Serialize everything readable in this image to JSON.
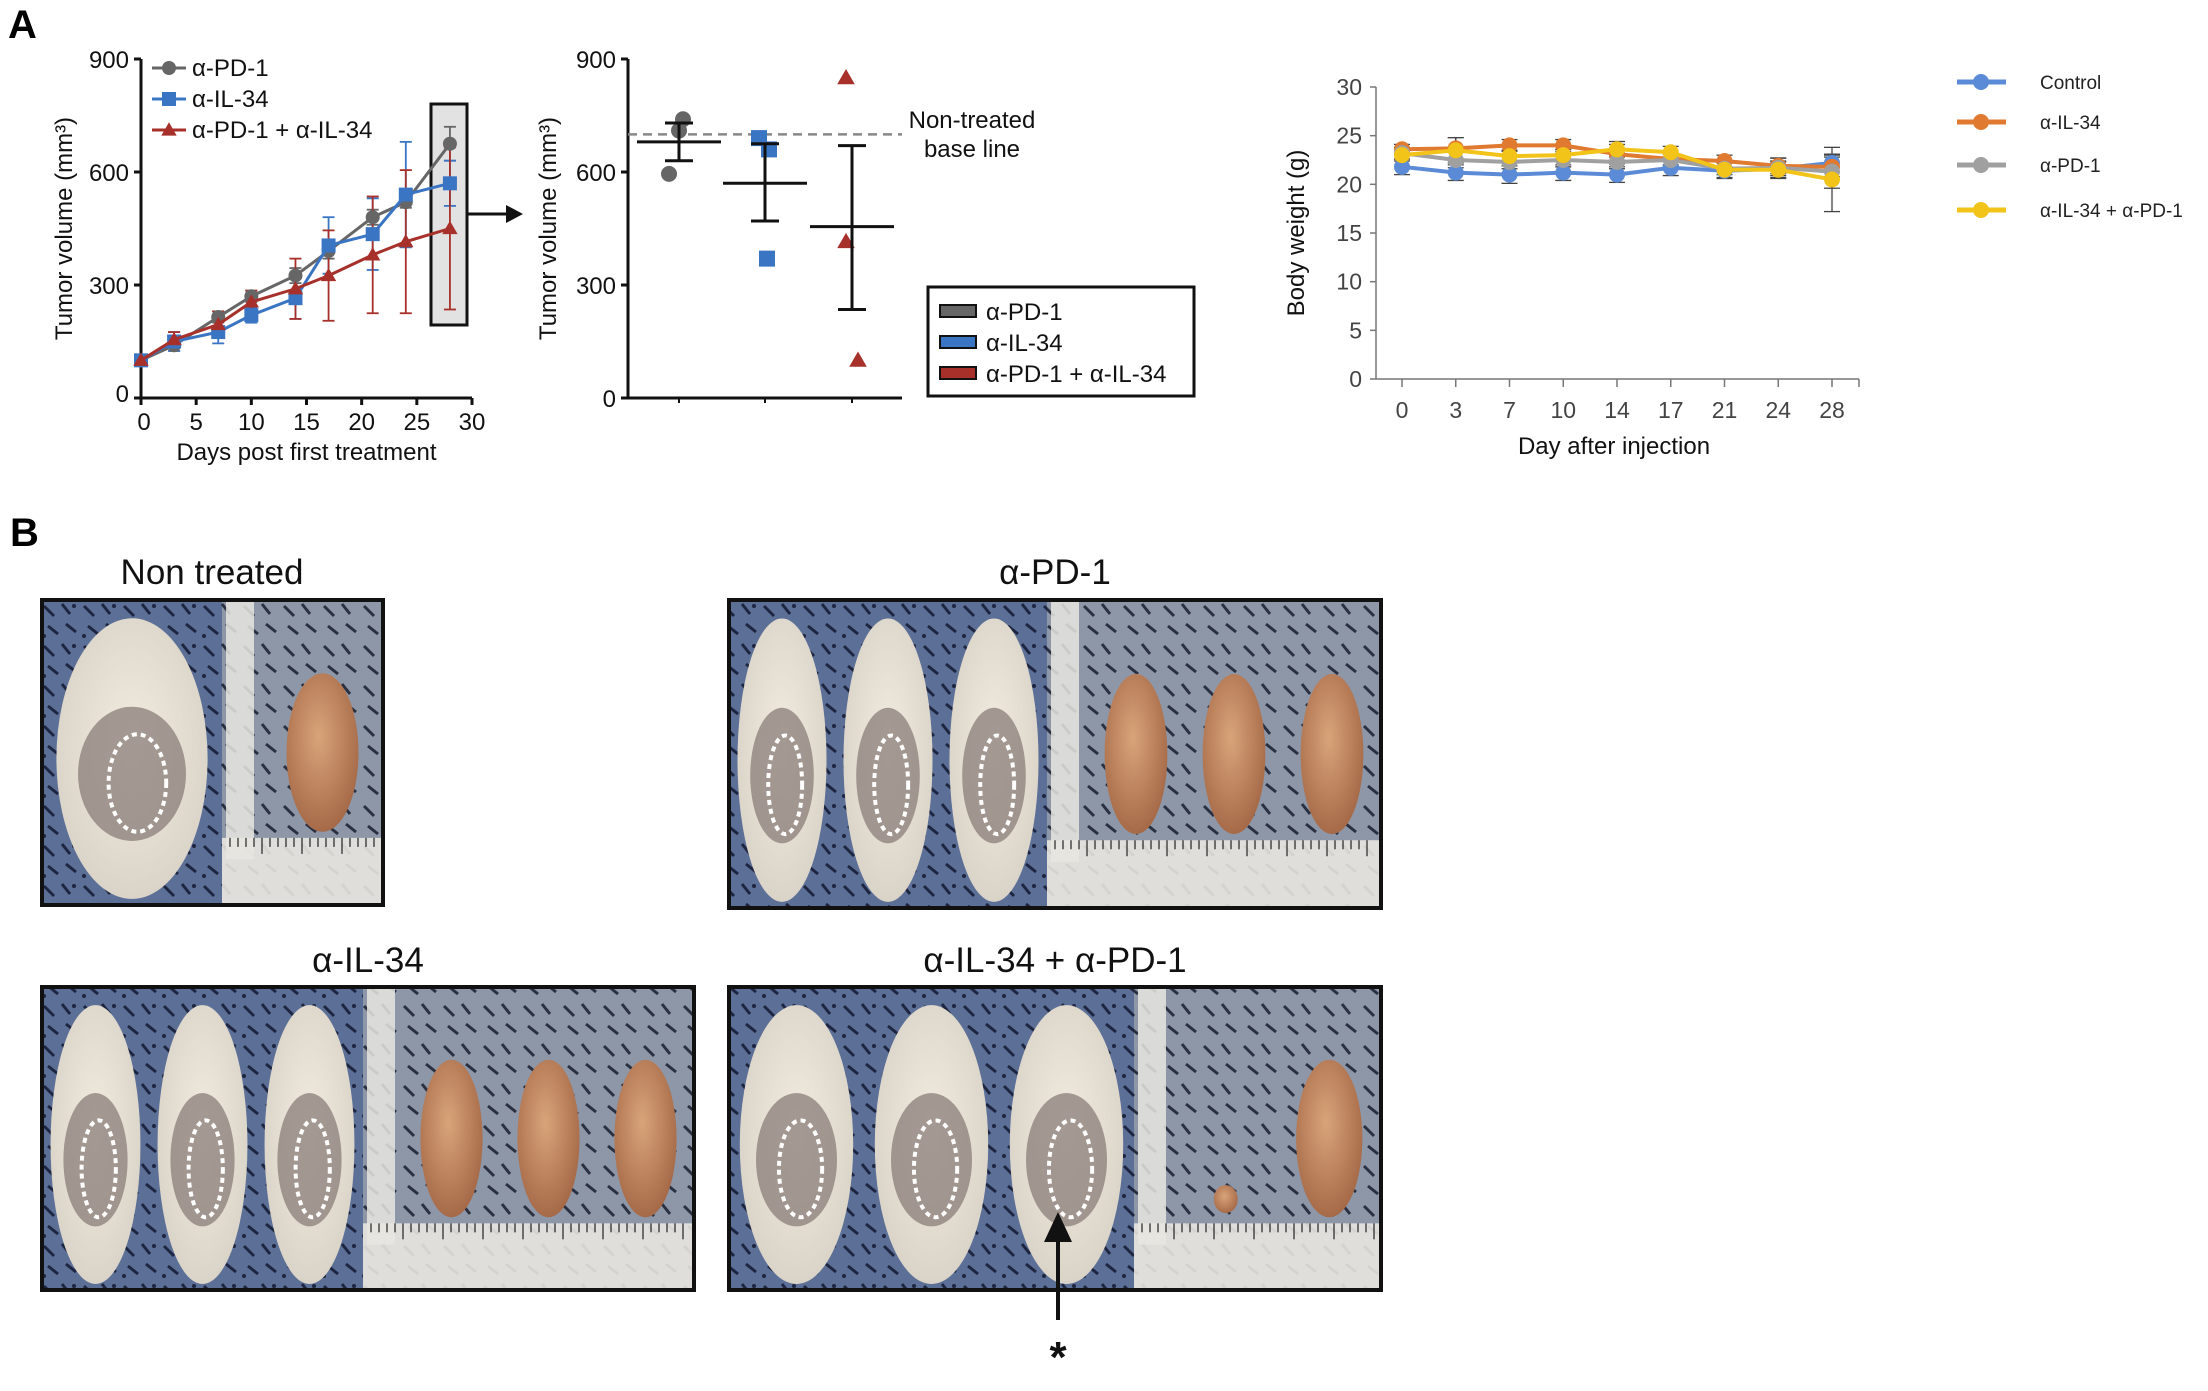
{
  "panels": {
    "a_label": "A",
    "b_label": "B"
  },
  "chart_data": [
    {
      "type": "line",
      "xlabel": "Days post first treatment",
      "ylabel": "Tumor volume (mm³)",
      "xlim": [
        0,
        30
      ],
      "ylim": [
        0,
        900
      ],
      "xticks": [
        "0",
        "5",
        "10",
        "15",
        "20",
        "25",
        "30"
      ],
      "yticks": [
        "0",
        "300",
        "600",
        "900"
      ],
      "legend_position": "top-left",
      "highlight": "day 28 boxed, arrow to right panel",
      "x": [
        0,
        3,
        7,
        10,
        14,
        17,
        21,
        24,
        28
      ],
      "series": [
        {
          "name": "α-PD-1",
          "color": "#666666",
          "marker": "circle",
          "values": [
            100,
            140,
            215,
            270,
            325,
            390,
            480,
            520,
            675
          ],
          "error": [
            10,
            15,
            15,
            15,
            20,
            20,
            20,
            15,
            45
          ]
        },
        {
          "name": "α-IL-34",
          "color": "#3a75c4",
          "marker": "square",
          "values": [
            100,
            150,
            175,
            220,
            265,
            405,
            435,
            540,
            570
          ],
          "error": [
            10,
            25,
            30,
            20,
            55,
            75,
            95,
            140,
            60
          ]
        },
        {
          "name": "α-PD-1 + α-IL-34",
          "color": "#a8302a",
          "marker": "triangle",
          "values": [
            100,
            155,
            195,
            255,
            290,
            325,
            380,
            415,
            450
          ],
          "error": [
            10,
            20,
            35,
            30,
            80,
            120,
            155,
            190,
            215
          ]
        }
      ]
    },
    {
      "type": "scatter",
      "ylabel": "Tumor volume (mm³)",
      "ylim": [
        0,
        900
      ],
      "yticks": [
        "0",
        "300",
        "600",
        "900"
      ],
      "baseline": {
        "value": 700,
        "label_line1": "Non-treated",
        "label_line2": "base line"
      },
      "legend_position": "bottom-right",
      "groups": [
        {
          "name": "α-PD-1",
          "color": "#666666",
          "marker": "circle",
          "points": [
            740,
            710,
            595
          ],
          "mean": 680,
          "err_low": 630,
          "err_high": 730
        },
        {
          "name": "α-IL-34",
          "color": "#3a75c4",
          "marker": "square",
          "points": [
            690,
            660,
            370
          ],
          "mean": 570,
          "err_low": 470,
          "err_high": 675
        },
        {
          "name": "α-PD-1 + α-IL-34",
          "color": "#a8302a",
          "marker": "triangle",
          "points": [
            850,
            415,
            100
          ],
          "mean": 455,
          "err_low": 235,
          "err_high": 670
        }
      ]
    },
    {
      "type": "line",
      "xlabel": "Day after injection",
      "ylabel": "Body weight (g)",
      "ylim": [
        0,
        30
      ],
      "categories": [
        "0",
        "3",
        "7",
        "10",
        "14",
        "17",
        "21",
        "24",
        "28"
      ],
      "yticks": [
        "0",
        "5",
        "10",
        "15",
        "20",
        "25",
        "30"
      ],
      "legend_position": "right",
      "series": [
        {
          "name": "Control",
          "color": "#5b8bd6",
          "values": [
            21.8,
            21.2,
            21.0,
            21.2,
            21.0,
            21.7,
            21.4,
            21.6,
            22.2
          ],
          "error": [
            0.8,
            0.8,
            0.9,
            0.8,
            0.8,
            0.8,
            0.8,
            0.7,
            0.9
          ]
        },
        {
          "name": "α-IL-34",
          "color": "#e07a30",
          "values": [
            23.6,
            23.7,
            24.0,
            24.0,
            23.1,
            22.6,
            22.4,
            21.9,
            21.8
          ],
          "error": [
            0.5,
            1.1,
            0.6,
            0.6,
            1.0,
            0.6,
            0.6,
            0.8,
            1.0
          ]
        },
        {
          "name": "α-PD-1",
          "color": "#a0a0a0",
          "values": [
            23.2,
            22.5,
            22.3,
            22.5,
            22.3,
            22.5,
            21.6,
            21.7,
            21.3
          ],
          "error": [
            0.6,
            0.8,
            0.7,
            0.7,
            0.7,
            0.6,
            0.6,
            1.0,
            1.7
          ]
        },
        {
          "name": "α-IL-34 + α-PD-1",
          "color": "#f2c318",
          "values": [
            23.0,
            23.5,
            22.9,
            23.0,
            23.6,
            23.3,
            21.5,
            21.5,
            20.5
          ],
          "error": [
            0.6,
            1.3,
            0.6,
            0.6,
            0.8,
            0.6,
            0.8,
            0.9,
            3.3
          ]
        }
      ]
    }
  ],
  "photos": [
    {
      "title": "Non treated",
      "mice": 1,
      "tumors": 1
    },
    {
      "title": "α-PD-1",
      "mice": 3,
      "tumors": 3
    },
    {
      "title": "α-IL-34",
      "mice": 3,
      "tumors": 3
    },
    {
      "title": "α-IL-34 + α-PD-1",
      "mice": 3,
      "tumors": 2,
      "marker": "*"
    }
  ]
}
